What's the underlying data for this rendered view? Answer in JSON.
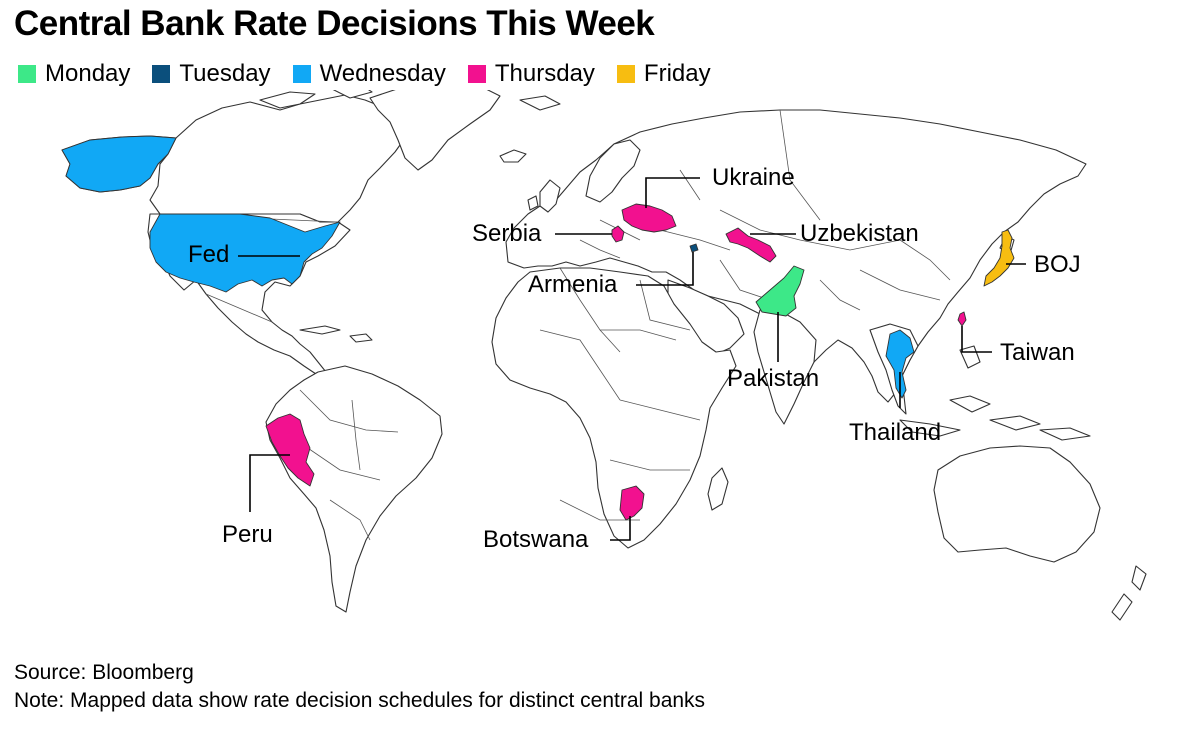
{
  "title": "Central Bank Rate Decisions This Week",
  "legend": [
    {
      "label": "Monday",
      "color": "#3de888"
    },
    {
      "label": "Tuesday",
      "color": "#0b4f7c"
    },
    {
      "label": "Wednesday",
      "color": "#11a8f5"
    },
    {
      "label": "Thursday",
      "color": "#f2118f"
    },
    {
      "label": "Friday",
      "color": "#f7bd11"
    }
  ],
  "labels": {
    "fed": "Fed",
    "peru": "Peru",
    "serbia": "Serbia",
    "armenia": "Armenia",
    "ukraine": "Ukraine",
    "uzbekistan": "Uzbekistan",
    "pakistan": "Pakistan",
    "botswana": "Botswana",
    "thailand": "Thailand",
    "boj": "BOJ",
    "taiwan": "Taiwan"
  },
  "highlighted": {
    "fed": "Wednesday",
    "peru": "Thursday",
    "serbia": "Thursday",
    "armenia": "Tuesday",
    "ukraine": "Thursday",
    "uzbekistan": "Thursday",
    "pakistan": "Monday",
    "botswana": "Thursday",
    "thailand": "Wednesday",
    "boj": "Friday",
    "taiwan": "Thursday"
  },
  "colors": {
    "land": "#ffffff",
    "border": "#333333"
  },
  "source": "Source: Bloomberg",
  "note": "Note: Mapped data show rate decision schedules for distinct central banks"
}
